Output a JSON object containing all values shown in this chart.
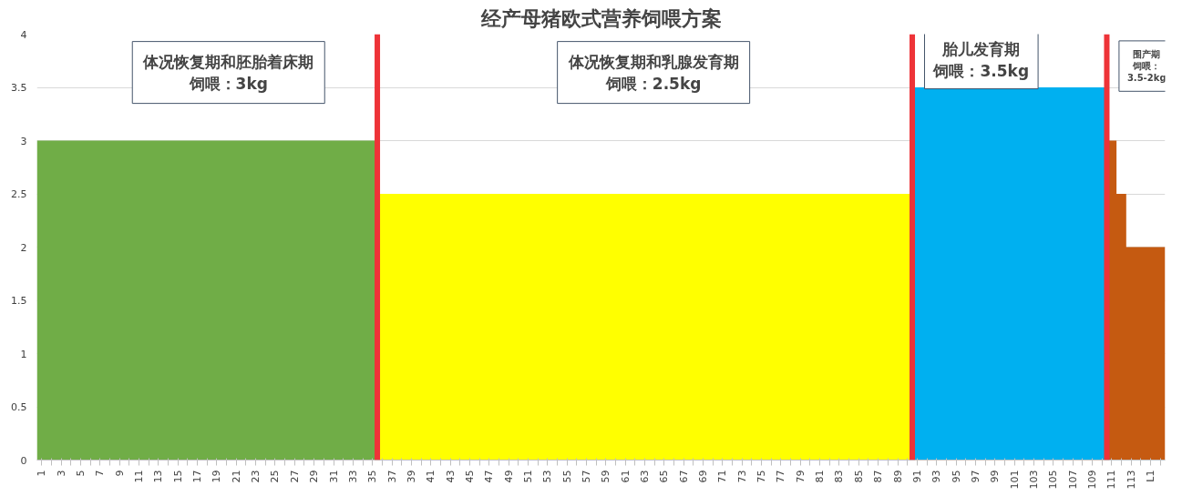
{
  "chart_data": {
    "type": "area",
    "title": "经产母猪欧式营养饲喂方案",
    "series": [
      {
        "color": "#70ad47",
        "x": [
          0.5,
          35.5
        ],
        "values": [
          3,
          3
        ]
      },
      {
        "color": "#ffff00",
        "x": [
          35.5,
          90.5
        ],
        "values": [
          2.5,
          2.5
        ]
      },
      {
        "color": "#00b0f0",
        "x": [
          90.5,
          110.5
        ],
        "values": [
          3.5,
          3.5
        ]
      },
      {
        "color": "#c55a11",
        "x": [
          110.5,
          111.5,
          111.5,
          112.5,
          112.5,
          116.5
        ],
        "values": [
          3,
          3,
          2.5,
          2.5,
          2,
          2
        ]
      }
    ],
    "xlim": [
      0.5,
      116.5
    ],
    "xticks": [
      1,
      {
        "value": 2,
        "label": null
      },
      3,
      {
        "value": 4,
        "label": null
      },
      5,
      {
        "value": 6,
        "label": null
      },
      7,
      {
        "value": 8,
        "label": null
      },
      9,
      {
        "value": 10,
        "label": null
      },
      11,
      {
        "value": 12,
        "label": null
      },
      13,
      {
        "value": 14,
        "label": null
      },
      15,
      {
        "value": 16,
        "label": null
      },
      17,
      {
        "value": 18,
        "label": null
      },
      19,
      {
        "value": 20,
        "label": null
      },
      21,
      {
        "value": 22,
        "label": null
      },
      23,
      {
        "value": 24,
        "label": null
      },
      25,
      {
        "value": 26,
        "label": null
      },
      27,
      {
        "value": 28,
        "label": null
      },
      29,
      {
        "value": 30,
        "label": null
      },
      31,
      {
        "value": 32,
        "label": null
      },
      33,
      {
        "value": 34,
        "label": null
      },
      35,
      {
        "value": 36,
        "label": null
      },
      37,
      {
        "value": 38,
        "label": null
      },
      39,
      {
        "value": 40,
        "label": null
      },
      41,
      {
        "value": 42,
        "label": null
      },
      43,
      {
        "value": 44,
        "label": null
      },
      45,
      {
        "value": 46,
        "label": null
      },
      47,
      {
        "value": 48,
        "label": null
      },
      49,
      {
        "value": 50,
        "label": null
      },
      51,
      {
        "value": 52,
        "label": null
      },
      53,
      {
        "value": 54,
        "label": null
      },
      55,
      {
        "value": 56,
        "label": null
      },
      57,
      {
        "value": 58,
        "label": null
      },
      59,
      {
        "value": 60,
        "label": null
      },
      61,
      {
        "value": 62,
        "label": null
      },
      63,
      {
        "value": 64,
        "label": null
      },
      65,
      {
        "value": 66,
        "label": null
      },
      67,
      {
        "value": 68,
        "label": null
      },
      69,
      {
        "value": 70,
        "label": null
      },
      71,
      {
        "value": 72,
        "label": null
      },
      73,
      {
        "value": 74,
        "label": null
      },
      75,
      {
        "value": 76,
        "label": null
      },
      77,
      {
        "value": 78,
        "label": null
      },
      79,
      {
        "value": 80,
        "label": null
      },
      81,
      {
        "value": 82,
        "label": null
      },
      83,
      {
        "value": 84,
        "label": null
      },
      85,
      {
        "value": 86,
        "label": null
      },
      87,
      {
        "value": 88,
        "label": null
      },
      89,
      {
        "value": 90,
        "label": null
      },
      91,
      {
        "value": 92,
        "label": null
      },
      93,
      {
        "value": 94,
        "label": null
      },
      95,
      {
        "value": 96,
        "label": null
      },
      97,
      {
        "value": 98,
        "label": null
      },
      99,
      {
        "value": 100,
        "label": null
      },
      101,
      {
        "value": 102,
        "label": null
      },
      103,
      {
        "value": 104,
        "label": null
      },
      105,
      {
        "value": 106,
        "label": null
      },
      107,
      {
        "value": 108,
        "label": null
      },
      109,
      {
        "value": 110,
        "label": null
      },
      111,
      {
        "value": 112,
        "label": null
      },
      113,
      {
        "value": 114,
        "label": null
      },
      {
        "value": 115,
        "label": "L1"
      },
      {
        "value": 116,
        "label": null
      }
    ],
    "ylim": [
      0,
      4
    ],
    "yticks": [
      0,
      0.5,
      1,
      1.5,
      2,
      2.5,
      3,
      3.5,
      4
    ],
    "grid": "y",
    "ref_lines": [
      {
        "axis": "x",
        "value": 35.5,
        "color": "#ee3338"
      },
      {
        "axis": "x",
        "value": 90.5,
        "color": "#ee3338"
      },
      {
        "axis": "x",
        "value": 110.5,
        "color": "#ee3338"
      }
    ],
    "annotations": [
      "体况恢复期和胚胎着床期",
      "饲喂：3kg",
      "体况恢复期和乳腺发育期",
      "饲喂：2.5kg",
      "胎儿发育期",
      "饲喂：3.5kg",
      "围产期",
      "饲喂：",
      "3.5-2kg"
    ]
  }
}
